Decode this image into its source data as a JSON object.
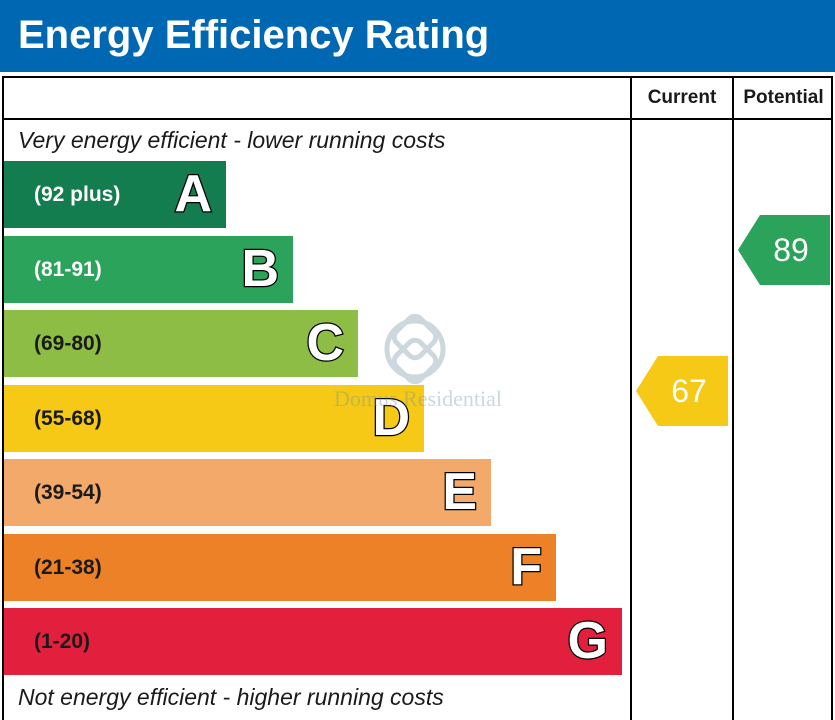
{
  "chart_data": {
    "type": "bar",
    "title": "Energy Efficiency Rating",
    "top_note": "Very energy efficient - lower running costs",
    "bottom_note": "Not energy efficient - higher running costs",
    "columns": {
      "current_label": "Current",
      "potential_label": "Potential"
    },
    "bands": [
      {
        "letter": "A",
        "range": "(92 plus)",
        "min": 92,
        "max": 100,
        "color": "#137d4f",
        "text_color": "#ffffff"
      },
      {
        "letter": "B",
        "range": "(81-91)",
        "min": 81,
        "max": 91,
        "color": "#2ba35a",
        "text_color": "#ffffff"
      },
      {
        "letter": "C",
        "range": "(69-80)",
        "min": 69,
        "max": 80,
        "color": "#8dbd44",
        "text_color": "#1a1a1a"
      },
      {
        "letter": "D",
        "range": "(55-68)",
        "min": 55,
        "max": 68,
        "color": "#f5c915",
        "text_color": "#1a1a1a"
      },
      {
        "letter": "E",
        "range": "(39-54)",
        "min": 39,
        "max": 54,
        "color": "#f2a96a",
        "text_color": "#1a1a1a"
      },
      {
        "letter": "F",
        "range": "(21-38)",
        "min": 21,
        "max": 38,
        "color": "#ec8128",
        "text_color": "#1a1a1a"
      },
      {
        "letter": "G",
        "range": "(1-20)",
        "min": 1,
        "max": 20,
        "color": "#e2203d",
        "text_color": "#1a1a1a"
      }
    ],
    "current": {
      "value": 67,
      "band": "D",
      "color": "#f5c915"
    },
    "potential": {
      "value": 89,
      "band": "B",
      "color": "#2ba35a"
    }
  },
  "watermark": {
    "text": "Domus Residential",
    "logo_icon": "interlaced-knot-logo"
  }
}
